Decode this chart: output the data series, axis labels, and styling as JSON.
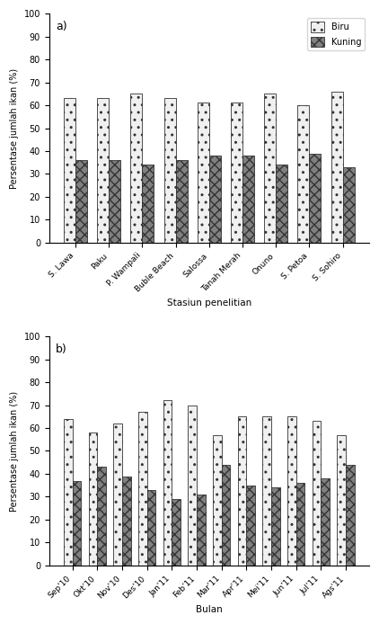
{
  "chart_a": {
    "stations": [
      "S. Lawa",
      "Paku",
      "P. Wampali",
      "Buble Beach",
      "Salossa",
      "Tanah Merah",
      "Onuno",
      "S. Petoa",
      "S. Sohiro"
    ],
    "biru": [
      63,
      63,
      65,
      63,
      61,
      61,
      65,
      60,
      66
    ],
    "kuning": [
      36,
      36,
      34,
      36,
      38,
      38,
      34,
      39,
      33
    ],
    "xlabel": "Stasiun penelitian",
    "ylabel": "Persentase jumlah ikan (%)",
    "label": "a)"
  },
  "chart_b": {
    "months": [
      "Sep'10",
      "Okt'10",
      "Nov'10",
      "Des'10",
      "Jan'11",
      "Feb'11",
      "Mar'11",
      "Apr'11",
      "Mei'11",
      "Jun'11",
      "Jul'11",
      "Ags'11"
    ],
    "biru": [
      64,
      58,
      62,
      67,
      72,
      70,
      57,
      65,
      65,
      65,
      63,
      57
    ],
    "kuning": [
      37,
      43,
      39,
      33,
      29,
      31,
      44,
      35,
      34,
      36,
      38,
      44
    ],
    "xlabel": "Bulan",
    "ylabel": "Persentase jumlah ikan (%)",
    "label": "b)"
  },
  "legend_biru": "Biru",
  "legend_kuning": "Kuning",
  "ylim": [
    0,
    100
  ],
  "yticks": [
    0,
    10,
    20,
    30,
    40,
    50,
    60,
    70,
    80,
    90,
    100
  ],
  "bar_width": 0.35,
  "color_biru": "#f0f0f0",
  "color_kuning": "#808080",
  "hatch_biru": "..",
  "hatch_kuning": "xxx",
  "edgecolor": "#333333"
}
